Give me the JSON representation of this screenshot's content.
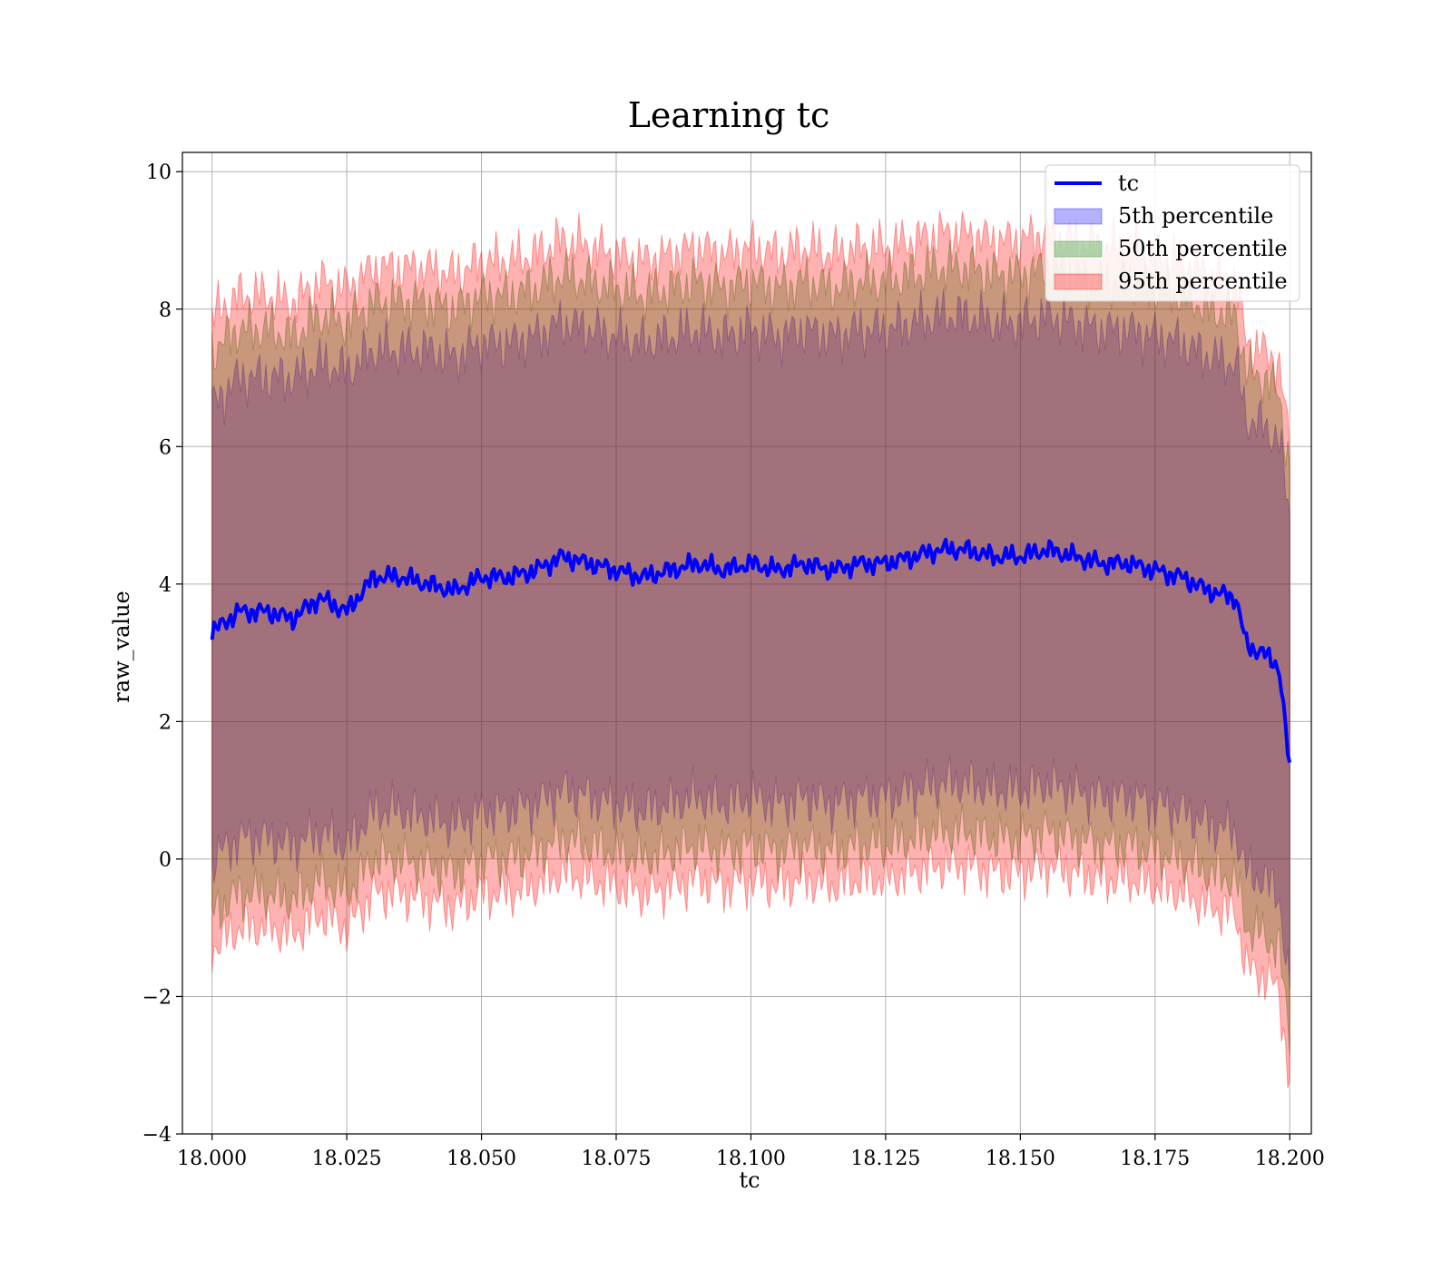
{
  "chart_data": {
    "type": "area",
    "title": "Learning tc",
    "xlabel": "tc",
    "ylabel": "raw_value",
    "xlim": [
      17.9945,
      18.204
    ],
    "ylim": [
      -4.0,
      10.28
    ],
    "xticks": [
      18.0,
      18.025,
      18.05,
      18.075,
      18.1,
      18.125,
      18.15,
      18.175,
      18.2
    ],
    "xtick_labels": [
      "18.000",
      "18.025",
      "18.050",
      "18.075",
      "18.100",
      "18.125",
      "18.150",
      "18.175",
      "18.200"
    ],
    "yticks": [
      -4,
      -2,
      0,
      2,
      4,
      6,
      8,
      10
    ],
    "ytick_labels": [
      "−4",
      "−2",
      "0",
      "2",
      "4",
      "6",
      "8",
      "10"
    ],
    "grid": true,
    "legend_position": "top-right",
    "legend": [
      {
        "label": "tc",
        "kind": "line",
        "color": "#0000ff"
      },
      {
        "label": "5th percentile",
        "kind": "patch",
        "color": "#0000ff"
      },
      {
        "label": "50th percentile",
        "kind": "patch",
        "color": "#008000"
      },
      {
        "label": "95th percentile",
        "kind": "patch",
        "color": "#ff0000"
      }
    ],
    "x": [
      18.0,
      18.005,
      18.01,
      18.015,
      18.02,
      18.025,
      18.03,
      18.035,
      18.04,
      18.045,
      18.05,
      18.055,
      18.06,
      18.065,
      18.07,
      18.075,
      18.08,
      18.085,
      18.09,
      18.095,
      18.1,
      18.105,
      18.11,
      18.115,
      18.12,
      18.125,
      18.13,
      18.135,
      18.14,
      18.145,
      18.15,
      18.155,
      18.16,
      18.165,
      18.17,
      18.175,
      18.18,
      18.185,
      18.19,
      18.192,
      18.195,
      18.198,
      18.2
    ],
    "series": [
      {
        "name": "tc",
        "style": "line",
        "color": "#0000ff",
        "values": [
          3.3,
          3.6,
          3.6,
          3.5,
          3.8,
          3.6,
          4.1,
          4.1,
          4.0,
          3.9,
          4.1,
          4.1,
          4.2,
          4.4,
          4.3,
          4.2,
          4.1,
          4.2,
          4.3,
          4.2,
          4.3,
          4.2,
          4.3,
          4.2,
          4.3,
          4.3,
          4.4,
          4.5,
          4.5,
          4.4,
          4.4,
          4.5,
          4.4,
          4.3,
          4.3,
          4.2,
          4.1,
          3.9,
          3.8,
          3.1,
          3.0,
          2.8,
          1.3
        ]
      },
      {
        "name": "5th percentile",
        "style": "band",
        "color": "#0000ff",
        "upper": [
          6.6,
          7.0,
          7.0,
          7.0,
          7.2,
          7.1,
          7.4,
          7.4,
          7.4,
          7.3,
          7.5,
          7.5,
          7.6,
          7.8,
          7.7,
          7.6,
          7.5,
          7.6,
          7.7,
          7.6,
          7.7,
          7.6,
          7.7,
          7.6,
          7.7,
          7.7,
          7.8,
          7.9,
          7.9,
          7.8,
          7.8,
          7.9,
          7.8,
          7.7,
          7.7,
          7.6,
          7.5,
          7.3,
          7.2,
          6.4,
          6.3,
          6.1,
          5.0
        ],
        "lower": [
          0.0,
          0.3,
          0.3,
          0.2,
          0.4,
          0.2,
          0.7,
          0.7,
          0.6,
          0.5,
          0.7,
          0.7,
          0.8,
          1.0,
          0.9,
          0.8,
          0.7,
          0.8,
          0.9,
          0.8,
          0.9,
          0.8,
          0.9,
          0.8,
          0.9,
          0.9,
          1.0,
          1.1,
          1.1,
          1.0,
          1.0,
          1.1,
          1.0,
          0.9,
          0.9,
          0.8,
          0.7,
          0.5,
          0.4,
          -0.2,
          -0.3,
          -0.5,
          -2.0
        ]
      },
      {
        "name": "50th percentile",
        "style": "band",
        "color": "#008000",
        "upper": [
          7.4,
          7.7,
          7.7,
          7.6,
          7.9,
          7.8,
          8.1,
          8.1,
          8.1,
          8.0,
          8.2,
          8.2,
          8.3,
          8.5,
          8.4,
          8.3,
          8.2,
          8.3,
          8.4,
          8.3,
          8.4,
          8.3,
          8.4,
          8.3,
          8.4,
          8.4,
          8.5,
          8.6,
          8.6,
          8.5,
          8.5,
          8.6,
          8.5,
          8.4,
          8.4,
          8.3,
          8.2,
          8.0,
          7.9,
          7.1,
          7.0,
          6.8,
          5.6
        ],
        "lower": [
          -0.8,
          -0.5,
          -0.5,
          -0.6,
          -0.3,
          -0.5,
          0.0,
          0.0,
          -0.1,
          -0.2,
          0.0,
          0.0,
          0.1,
          0.3,
          0.2,
          0.1,
          0.0,
          0.1,
          0.2,
          0.1,
          0.2,
          0.1,
          0.2,
          0.1,
          0.2,
          0.2,
          0.3,
          0.4,
          0.4,
          0.3,
          0.3,
          0.4,
          0.3,
          0.2,
          0.2,
          0.1,
          0.0,
          -0.2,
          -0.3,
          -1.0,
          -1.1,
          -1.3,
          -2.6
        ]
      },
      {
        "name": "95th percentile",
        "style": "band",
        "color": "#ff0000",
        "upper": [
          7.9,
          8.2,
          8.2,
          8.1,
          8.4,
          8.3,
          8.6,
          8.6,
          8.6,
          8.5,
          8.7,
          8.7,
          8.8,
          9.0,
          8.9,
          8.8,
          8.7,
          8.8,
          8.9,
          8.8,
          8.9,
          8.8,
          8.9,
          8.8,
          8.9,
          8.9,
          9.0,
          9.1,
          9.1,
          9.0,
          9.0,
          9.1,
          9.0,
          8.9,
          8.9,
          8.8,
          8.7,
          8.5,
          8.4,
          7.5,
          7.4,
          7.2,
          6.0
        ],
        "lower": [
          -1.3,
          -1.0,
          -1.0,
          -1.1,
          -0.8,
          -1.0,
          -0.5,
          -0.5,
          -0.6,
          -0.7,
          -0.5,
          -0.5,
          -0.4,
          -0.2,
          -0.3,
          -0.4,
          -0.5,
          -0.4,
          -0.3,
          -0.4,
          -0.3,
          -0.4,
          -0.3,
          -0.4,
          -0.3,
          -0.3,
          -0.2,
          -0.1,
          -0.1,
          -0.2,
          -0.2,
          -0.1,
          -0.2,
          -0.3,
          -0.3,
          -0.4,
          -0.5,
          -0.7,
          -0.8,
          -1.6,
          -1.7,
          -1.9,
          -3.3
        ]
      }
    ]
  }
}
